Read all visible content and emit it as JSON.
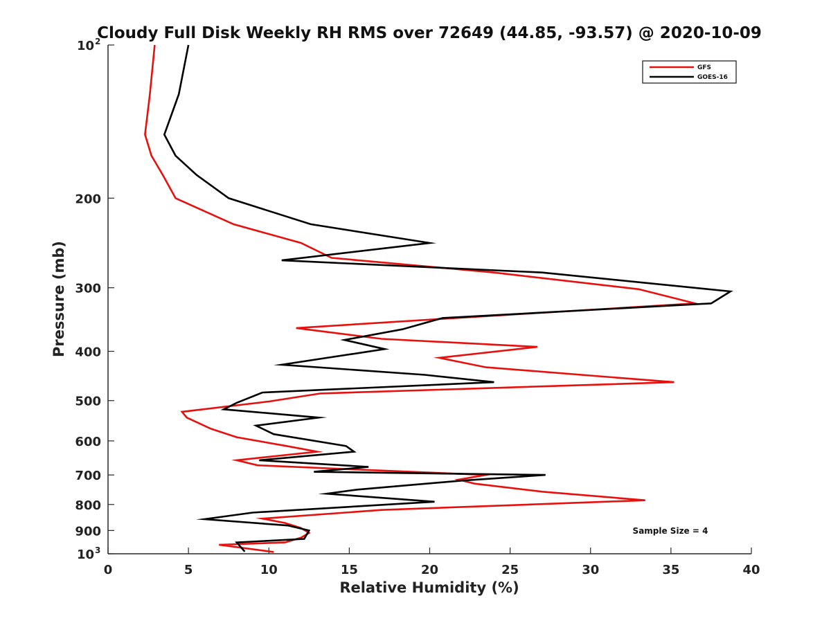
{
  "chart_data": {
    "type": "line",
    "title": "Cloudy Full Disk Weekly RH RMS over 72649 (44.85, -93.57) @ 2020-10-09",
    "xlabel": "Relative Humidity (%)",
    "ylabel": "Pressure (mb)",
    "xlim": [
      0,
      40
    ],
    "ylim": [
      100,
      1000
    ],
    "yscale": "log",
    "y_reversed": true,
    "x_ticks": [
      0,
      5,
      10,
      15,
      20,
      25,
      30,
      35,
      40
    ],
    "y_ticks": [
      {
        "value": 100,
        "label": "10",
        "sup": "2"
      },
      {
        "value": 200,
        "label": "200"
      },
      {
        "value": 300,
        "label": "300"
      },
      {
        "value": 400,
        "label": "400"
      },
      {
        "value": 500,
        "label": "500"
      },
      {
        "value": 600,
        "label": "600"
      },
      {
        "value": 700,
        "label": "700"
      },
      {
        "value": 800,
        "label": "800"
      },
      {
        "value": 900,
        "label": "900"
      },
      {
        "value": 1000,
        "label": "10",
        "sup": "3"
      }
    ],
    "grid": false,
    "legend_position": "top-right",
    "annotation": "Sample Size = 4",
    "series": [
      {
        "name": "GFS",
        "color": "#e8100d",
        "points": [
          [
            2.9,
            100
          ],
          [
            2.6,
            125
          ],
          [
            2.3,
            150
          ],
          [
            2.7,
            165
          ],
          [
            3.4,
            180
          ],
          [
            4.2,
            200
          ],
          [
            7.8,
            225
          ],
          [
            12.0,
            245
          ],
          [
            13.9,
            262
          ],
          [
            24.0,
            280
          ],
          [
            33.0,
            302
          ],
          [
            36.5,
            322
          ],
          [
            21.0,
            345
          ],
          [
            11.7,
            360
          ],
          [
            17.0,
            378
          ],
          [
            26.7,
            392
          ],
          [
            20.6,
            412
          ],
          [
            23.5,
            430
          ],
          [
            35.2,
            460
          ],
          [
            13.2,
            484
          ],
          [
            10.0,
            502
          ],
          [
            4.6,
            526
          ],
          [
            4.9,
            540
          ],
          [
            6.4,
            568
          ],
          [
            8.0,
            590
          ],
          [
            11.1,
            614
          ],
          [
            13.0,
            630
          ],
          [
            8.0,
            655
          ],
          [
            9.3,
            670
          ],
          [
            16.0,
            684
          ],
          [
            23.5,
            700
          ],
          [
            21.8,
            715
          ],
          [
            22.8,
            728
          ],
          [
            27.0,
            755
          ],
          [
            33.4,
            785
          ],
          [
            17.0,
            820
          ],
          [
            9.6,
            853
          ],
          [
            11.0,
            870
          ],
          [
            12.0,
            890
          ],
          [
            12.5,
            910
          ],
          [
            12.0,
            930
          ],
          [
            11.0,
            950
          ],
          [
            6.9,
            960
          ],
          [
            10.3,
            992
          ]
        ]
      },
      {
        "name": "GOES-16",
        "color": "#000000",
        "points": [
          [
            5.0,
            100
          ],
          [
            4.4,
            125
          ],
          [
            3.5,
            150
          ],
          [
            4.2,
            165
          ],
          [
            5.5,
            180
          ],
          [
            7.5,
            200
          ],
          [
            12.6,
            225
          ],
          [
            20.0,
            245
          ],
          [
            10.8,
            265
          ],
          [
            27.0,
            280
          ],
          [
            38.7,
            305
          ],
          [
            37.5,
            322
          ],
          [
            20.8,
            344
          ],
          [
            18.3,
            362
          ],
          [
            14.7,
            380
          ],
          [
            17.2,
            396
          ],
          [
            10.8,
            425
          ],
          [
            19.7,
            445
          ],
          [
            24.0,
            460
          ],
          [
            9.6,
            482
          ],
          [
            8.0,
            505
          ],
          [
            7.2,
            520
          ],
          [
            13.1,
            540
          ],
          [
            9.2,
            560
          ],
          [
            10.3,
            582
          ],
          [
            14.8,
            614
          ],
          [
            15.3,
            630
          ],
          [
            9.4,
            655
          ],
          [
            16.2,
            675
          ],
          [
            12.8,
            690
          ],
          [
            27.2,
            700
          ],
          [
            22.0,
            718
          ],
          [
            15.5,
            748
          ],
          [
            13.6,
            762
          ],
          [
            20.3,
            790
          ],
          [
            9.0,
            830
          ],
          [
            6.0,
            855
          ],
          [
            11.2,
            880
          ],
          [
            12.5,
            900
          ],
          [
            12.2,
            935
          ],
          [
            8.0,
            950
          ],
          [
            8.5,
            990
          ]
        ]
      }
    ]
  }
}
